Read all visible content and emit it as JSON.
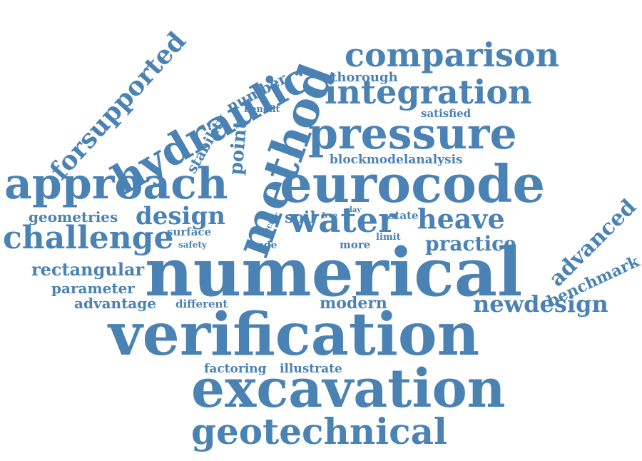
{
  "cloud": {
    "color": "#4a82b4",
    "words": {
      "numerical": "numerical",
      "verification": "verification",
      "excavation": "excavation",
      "geotechnical": "geotechnical",
      "eurocode": "eurocode",
      "pressure": "pressure",
      "method": "method",
      "approach": "approach",
      "hydraulic": "hydraulic",
      "comparison": "comparison",
      "integration": "integration",
      "water": "water",
      "challenge": "challenge",
      "forsupported": "forsupported",
      "heave": "heave",
      "design": "design",
      "advanced": "advanced",
      "newdesign": "newdesign",
      "practice": "practice",
      "rectangular": "rectangular",
      "benchmark": "benchmark",
      "point": "point",
      "modern": "modern",
      "parameter": "parameter",
      "geometries": "geometries",
      "advantage": "advantage",
      "blockmodelanalysis": "blockmodelanalysis",
      "stability": "stability",
      "number": "number",
      "thorough": "thorough",
      "soil": "soil",
      "factoring": "factoring",
      "illustrate": "illustrate",
      "satisfied": "satisfied",
      "surface": "surface",
      "different": "different",
      "state": "state",
      "more": "more",
      "code": "code",
      "limit": "limit",
      "safety": "safety",
      "benefit": "benefit",
      "factor": "factor",
      "free": "free",
      "clay": "clay"
    }
  }
}
